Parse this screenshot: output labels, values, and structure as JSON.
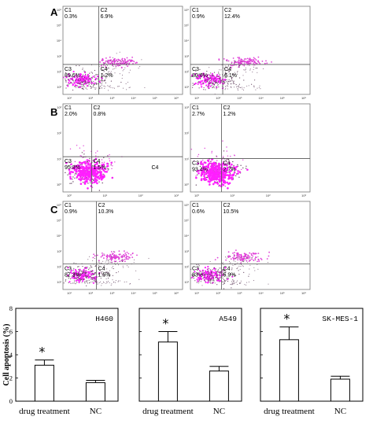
{
  "row_labels": [
    "A",
    "B",
    "C"
  ],
  "flow_panels": [
    {
      "row": 0,
      "col": 0,
      "quadrants": {
        "C1": "0.3%",
        "C2": "6.9%",
        "C3": "89.6%",
        "C4": "1.2%"
      },
      "extra_label": "",
      "y_ticks": [
        "10⁶",
        "10⁵",
        "10⁴",
        "10³",
        "10²",
        "10¹"
      ],
      "x_ticks": [
        "10¹",
        "10²",
        "10³",
        "10⁴",
        "10⁵",
        "10⁶"
      ]
    },
    {
      "row": 0,
      "col": 1,
      "quadrants": {
        "C1": "0.9%",
        "C2": "12.4%",
        "C3": "80.6%",
        "C4": "6.1%"
      },
      "extra_label": "",
      "y_ticks": [
        "10⁶",
        "10⁵",
        "10⁴",
        "10³",
        "10²",
        "10¹"
      ],
      "x_ticks": [
        "10¹",
        "10²",
        "10³",
        "10⁴",
        "10⁵",
        "10⁶"
      ]
    },
    {
      "row": 1,
      "col": 0,
      "quadrants": {
        "C1": "2.0%",
        "C2": "0.8%",
        "C3": "95.8%",
        "C4": "1.5%"
      },
      "extra_label": "C4",
      "y_ticks": [
        "10³",
        "10²",
        "10¹",
        "10⁰"
      ],
      "x_ticks": [
        "10⁰",
        "10¹",
        "10²",
        "10³"
      ]
    },
    {
      "row": 1,
      "col": 1,
      "quadrants": {
        "C1": "2.7%",
        "C2": "1.2%",
        "C3": "93.4%",
        "C4": "2.7%"
      },
      "extra_label": "",
      "y_ticks": [
        "10³",
        "10²",
        "10¹",
        "10⁰"
      ],
      "x_ticks": [
        "10⁰",
        "10¹",
        "10²",
        "10³"
      ]
    },
    {
      "row": 2,
      "col": 0,
      "quadrants": {
        "C1": "0.9%",
        "C2": "10.3%",
        "C3": "87.3%",
        "C4": "1.5%"
      },
      "extra_label": "",
      "y_ticks": [
        "10⁶",
        "10⁵",
        "10⁴",
        "10³",
        "10²",
        "10¹"
      ],
      "x_ticks": [
        "10¹",
        "10²",
        "10³",
        "10⁴",
        "10⁵",
        "10⁶"
      ]
    },
    {
      "row": 2,
      "col": 1,
      "quadrants": {
        "C1": "0.6%",
        "C2": "10.5%",
        "C3": "83%",
        "C4": "5.9%"
      },
      "extra_label": "",
      "y_ticks": [
        "10⁶",
        "10⁵",
        "10⁴",
        "10³",
        "10²",
        "10¹"
      ],
      "x_ticks": [
        "10¹",
        "10²",
        "10³",
        "10⁴",
        "10⁵",
        "10⁶"
      ]
    }
  ],
  "bar_charts": {
    "ylabel": "Cell apoptosis (%)",
    "yticks": [
      "8",
      "6",
      "4",
      "2",
      "0"
    ]
  },
  "chart_data": [
    {
      "type": "bar",
      "title": "H460",
      "categories": [
        "drug treatment",
        "NC"
      ],
      "values": [
        3.1,
        1.6
      ],
      "errors": [
        0.45,
        0.2
      ],
      "significance": [
        "*",
        ""
      ],
      "ylabel": "Cell apoptosis (%)",
      "ylim": [
        0,
        8
      ]
    },
    {
      "type": "bar",
      "title": "A549",
      "categories": [
        "drug treatment",
        "NC"
      ],
      "values": [
        5.1,
        2.6
      ],
      "errors": [
        0.9,
        0.4
      ],
      "significance": [
        "*",
        ""
      ],
      "ylabel": "",
      "ylim": [
        0,
        8
      ]
    },
    {
      "type": "bar",
      "title": "SK-MES-1",
      "categories": [
        "drug treatment",
        "NC"
      ],
      "values": [
        5.3,
        1.9
      ],
      "errors": [
        1.1,
        0.25
      ],
      "significance": [
        "*",
        ""
      ],
      "ylabel": "",
      "ylim": [
        0,
        8
      ]
    }
  ],
  "colors": {
    "dense": "#ff1fff",
    "mid": "#e040d8",
    "sparse": "#6a4a66",
    "line": "#555555"
  }
}
